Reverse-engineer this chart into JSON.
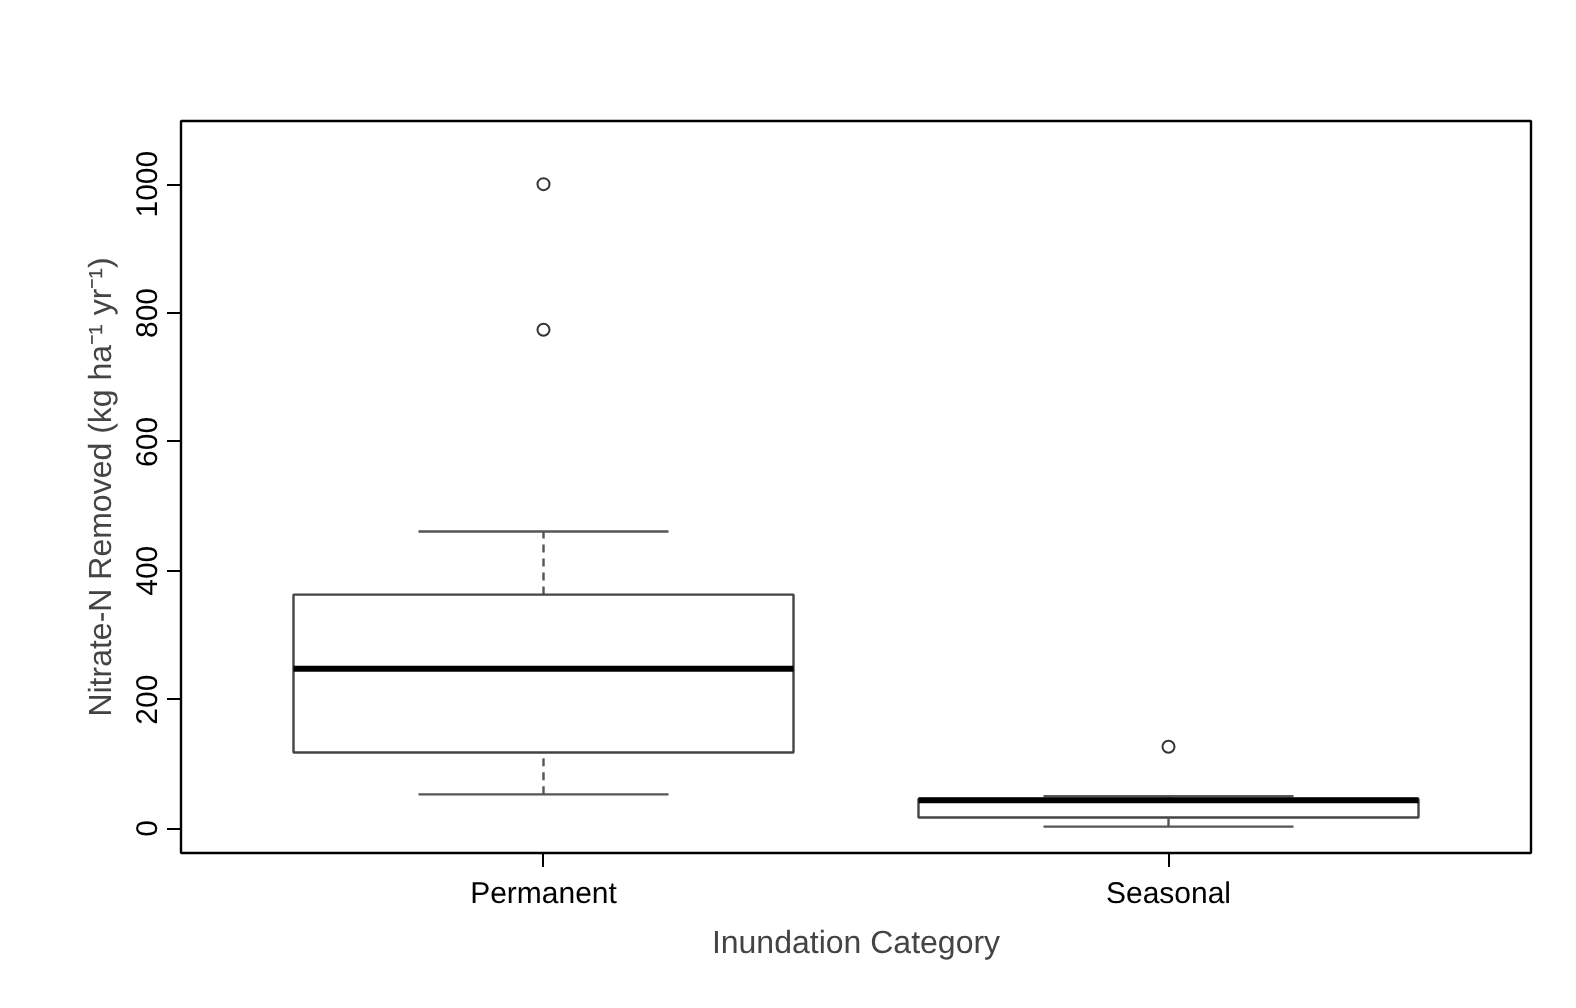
{
  "chart_data": {
    "type": "box",
    "xlabel": "Inundation Category",
    "ylabel": "Nitrate-N Removed (kg ha⁻¹ yr⁻¹)",
    "categories": [
      "Permanent",
      "Seasonal"
    ],
    "boxes": [
      {
        "low": 53,
        "q1": 118,
        "median": 248,
        "q3": 363,
        "high": 461,
        "outliers": [
          774,
          1000
        ]
      },
      {
        "low": 3,
        "q1": 17,
        "median": 44,
        "q3": 46,
        "high": 50,
        "outliers": [
          127
        ]
      }
    ],
    "ylim": [
      -38,
      1098
    ],
    "yticks": [
      0,
      200,
      400,
      600,
      800,
      1000
    ],
    "grid": false
  }
}
